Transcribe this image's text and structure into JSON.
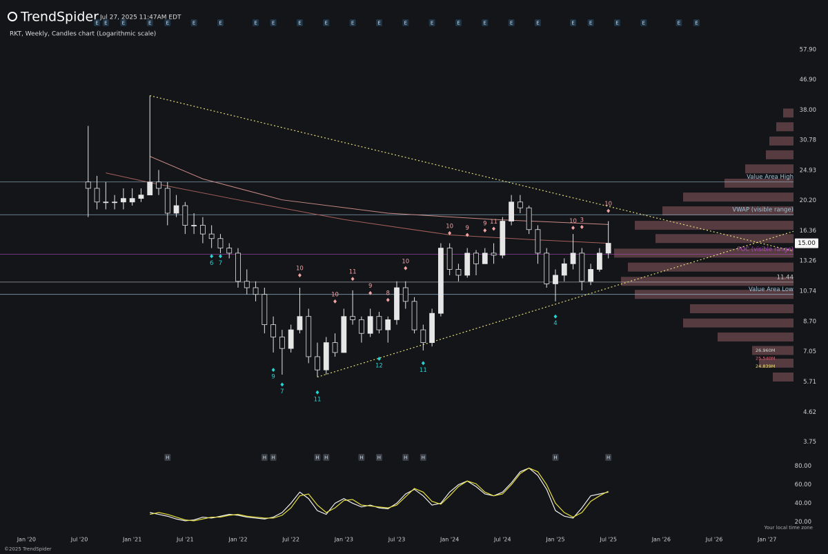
{
  "header": {
    "brand": "TrendSpider",
    "timestamp": "Jul 27, 2025 11:47AM EDT",
    "copyright": "©2025 TrendSpider",
    "timezone_note": "Your local time zone"
  },
  "chart_data": [
    {
      "type": "candlestick",
      "title": "RKT, Weekly, Candles chart (Logarithmic scale)",
      "log_scale": true,
      "color": "#e6e6e6",
      "x": [
        "2020-08",
        "2020-09",
        "2020-10",
        "2020-11",
        "2020-12",
        "2021-01",
        "2021-02",
        "2021-03",
        "2021-04",
        "2021-05",
        "2021-06",
        "2021-07",
        "2021-08",
        "2021-09",
        "2021-10",
        "2021-11",
        "2021-12",
        "2022-01",
        "2022-02",
        "2022-03",
        "2022-04",
        "2022-05",
        "2022-06",
        "2022-07",
        "2022-08",
        "2022-09",
        "2022-10",
        "2022-11",
        "2022-12",
        "2023-01",
        "2023-02",
        "2023-03",
        "2023-04",
        "2023-05",
        "2023-06",
        "2023-07",
        "2023-08",
        "2023-09",
        "2023-10",
        "2023-11",
        "2023-12",
        "2024-01",
        "2024-02",
        "2024-03",
        "2024-04",
        "2024-05",
        "2024-06",
        "2024-07",
        "2024-08",
        "2024-09",
        "2024-10",
        "2024-11",
        "2024-12",
        "2025-01",
        "2025-02",
        "2025-03",
        "2025-04",
        "2025-05",
        "2025-06",
        "2025-07"
      ],
      "open": [
        23,
        22,
        20,
        20,
        20,
        20,
        20.5,
        21,
        23,
        22,
        18.5,
        19.5,
        17,
        17,
        16,
        15.5,
        14.5,
        14,
        11.5,
        11,
        10.5,
        8.5,
        7.8,
        7.2,
        8.2,
        9,
        6.8,
        6.2,
        7.5,
        7,
        9,
        8.8,
        8,
        9,
        8.2,
        8.8,
        11,
        10,
        8.2,
        7.5,
        9.2,
        14.5,
        12.5,
        12,
        14,
        13,
        14,
        13.8,
        17.5,
        20,
        19.2,
        16.5,
        14,
        11.3,
        12,
        13,
        14,
        11.5,
        12.5,
        14
      ],
      "high": [
        34,
        24,
        23,
        21,
        22,
        22,
        22,
        42,
        25,
        23,
        21,
        20,
        18.5,
        18,
        17,
        16,
        15,
        14.5,
        12.5,
        11.5,
        11,
        9,
        8.2,
        8.5,
        11,
        9.5,
        7.5,
        7.8,
        8,
        9.5,
        10.8,
        9,
        9.5,
        9.3,
        9,
        11.5,
        11.5,
        10.3,
        8.5,
        9.5,
        15,
        15,
        13,
        14.5,
        14.3,
        14.5,
        15,
        18,
        21,
        21,
        19.5,
        17,
        14.5,
        12.5,
        13.5,
        16,
        14.5,
        13,
        14.5,
        17.5
      ],
      "low": [
        18,
        19,
        19,
        19,
        19,
        19.5,
        20,
        21,
        21,
        17,
        18,
        16,
        16,
        15,
        14.5,
        14,
        13.5,
        11,
        10.5,
        10,
        8,
        7,
        6,
        7,
        8,
        6.5,
        5.9,
        6,
        6.8,
        7,
        8.5,
        7.5,
        7.8,
        8,
        7.5,
        8.5,
        9.5,
        8,
        7.1,
        7.3,
        9,
        12,
        11.5,
        11.8,
        12,
        13,
        13,
        13.5,
        17,
        18.5,
        16,
        13,
        11,
        10,
        11.5,
        12.5,
        10.8,
        11.2,
        12.3,
        13.5
      ],
      "close": [
        22,
        20,
        20,
        20,
        20.5,
        20.5,
        21,
        23,
        22,
        18.5,
        19.5,
        17,
        17,
        16,
        15.5,
        14.5,
        14,
        11.5,
        11,
        10.5,
        8.5,
        7.8,
        7.2,
        8.2,
        9,
        6.8,
        6.2,
        7.5,
        7,
        9,
        8.8,
        8,
        9,
        8.2,
        8.8,
        11,
        10,
        8.2,
        7.5,
        9.2,
        14.5,
        12.5,
        12,
        14,
        13,
        14,
        13.8,
        17.5,
        20,
        19.2,
        16.5,
        14,
        11.3,
        12,
        13,
        14,
        11.5,
        12.5,
        14,
        15
      ],
      "xlim": [
        "2019-10",
        "2027-04"
      ],
      "xticks": [
        {
          "value": "2020-01",
          "label": "Jan '20"
        },
        {
          "value": "2020-07",
          "label": "Jul '20"
        },
        {
          "value": "2021-01",
          "label": "Jan '21"
        },
        {
          "value": "2021-07",
          "label": "Jul '21"
        },
        {
          "value": "2022-01",
          "label": "Jan '22"
        },
        {
          "value": "2022-07",
          "label": "Jul '22"
        },
        {
          "value": "2023-01",
          "label": "Jan '23"
        },
        {
          "value": "2023-07",
          "label": "Jul '23"
        },
        {
          "value": "2024-01",
          "label": "Jan '24"
        },
        {
          "value": "2024-07",
          "label": "Jul '24"
        },
        {
          "value": "2025-01",
          "label": "Jan '25"
        },
        {
          "value": "2025-07",
          "label": "Jul '25"
        },
        {
          "value": "2026-01",
          "label": "Jan '26"
        },
        {
          "value": "2026-07",
          "label": "Jul '26"
        },
        {
          "value": "2027-01",
          "label": "Jan '27"
        }
      ],
      "ylim": [
        3.5,
        67.5
      ],
      "yticks": [
        {
          "value": 57.9,
          "label": "57.90"
        },
        {
          "value": 46.9,
          "label": "46.90"
        },
        {
          "value": 38,
          "label": "38.00"
        },
        30.78,
        24.93,
        {
          "value": 20.2,
          "label": "20.20"
        },
        16.36,
        13.26,
        10.74,
        {
          "value": 8.7,
          "label": "8.70"
        },
        7.05,
        5.71,
        4.62,
        3.75
      ],
      "last_price": {
        "value": 15,
        "label": "15.00"
      },
      "levels": [
        {
          "value": 23,
          "label": "Value Area High",
          "color": "#9fc3d6"
        },
        {
          "value": 18.3,
          "label": "VWAP (visible range)",
          "color": "#9fc3d6"
        },
        {
          "value": 13.9,
          "label": "POC (visible range)",
          "color": "#b04cc0"
        },
        {
          "value": 11.44,
          "color": "#c8c8c8"
        },
        {
          "value": 10.5,
          "label": "Value Area Low",
          "color": "#9fc3d6"
        }
      ],
      "trendlines": [
        {
          "x": [
            "2021-03",
            "2027-04"
          ],
          "y": [
            42,
            14.2
          ],
          "color": "#e8e07a"
        },
        {
          "x": [
            "2022-10",
            "2027-04"
          ],
          "y": [
            5.9,
            16.3
          ],
          "color": "#e8e07a"
        }
      ],
      "moving_averages": [
        {
          "color": "#c98a86",
          "x": [
            "2021-03",
            "2021-09",
            "2022-06",
            "2023-06",
            "2024-06",
            "2025-07"
          ],
          "values": [
            27.5,
            23.5,
            20.3,
            18.5,
            17.7,
            17.1
          ]
        },
        {
          "color": "#a8605c",
          "x": [
            "2020-10",
            "2021-03",
            "2022-01",
            "2023-01",
            "2024-01",
            "2024-10",
            "2025-07"
          ],
          "values": [
            24.5,
            22.9,
            20.3,
            17.7,
            15.9,
            15.4,
            15
          ]
        }
      ],
      "td_buy": {
        "color": "#27d3d3",
        "points": [
          {
            "x": "2021-10",
            "y": 13.7,
            "text": "6"
          },
          {
            "x": "2021-11",
            "y": 13.7,
            "text": "7"
          },
          {
            "x": "2022-05",
            "y": 6.2,
            "text": "9"
          },
          {
            "x": "2022-06",
            "y": 5.6,
            "text": "7"
          },
          {
            "x": "2022-10",
            "y": 5.3,
            "text": "11"
          },
          {
            "x": "2023-05",
            "y": 6.7,
            "text": "12"
          },
          {
            "x": "2023-10",
            "y": 6.5,
            "text": "11"
          },
          {
            "x": "2025-01",
            "y": 9,
            "text": "4"
          }
        ]
      },
      "td_sell": {
        "color": "#f2a3a3",
        "points": [
          {
            "x": "2022-08",
            "y": 12,
            "text": "10"
          },
          {
            "x": "2022-12",
            "y": 10,
            "text": "10"
          },
          {
            "x": "2023-02",
            "y": 11.7,
            "text": "11"
          },
          {
            "x": "2023-04",
            "y": 10.6,
            "text": "9"
          },
          {
            "x": "2023-06",
            "y": 10.1,
            "text": "8"
          },
          {
            "x": "2023-08",
            "y": 12.6,
            "text": "10"
          },
          {
            "x": "2024-01",
            "y": 16.1,
            "text": "10"
          },
          {
            "x": "2024-03",
            "y": 15.9,
            "text": "9"
          },
          {
            "x": "2024-05",
            "y": 16.4,
            "text": "9"
          },
          {
            "x": "2024-06",
            "y": 16.6,
            "text": "11"
          },
          {
            "x": "2025-03",
            "y": 16.7,
            "text": "10"
          },
          {
            "x": "2025-04",
            "y": 16.8,
            "text": "3"
          },
          {
            "x": "2025-07",
            "y": 18.8,
            "text": "10"
          }
        ]
      },
      "earnings": {
        "label": "E",
        "x": [
          "2020-09",
          "2020-10",
          "2020-12",
          "2021-03",
          "2021-05",
          "2021-08",
          "2021-11",
          "2022-03",
          "2022-05",
          "2022-08",
          "2022-11",
          "2023-02",
          "2023-05",
          "2023-08",
          "2023-11",
          "2024-02",
          "2024-05",
          "2024-08",
          "2024-11",
          "2025-03",
          "2025-05",
          "2025-08",
          "2025-11",
          "2026-03",
          "2026-05"
        ]
      },
      "h_markers": {
        "label": "H",
        "x": [
          "2021-05",
          "2022-04",
          "2022-05",
          "2022-10",
          "2022-11",
          "2023-03",
          "2023-05",
          "2023-08",
          "2023-10",
          "2025-01",
          "2025-07"
        ]
      },
      "volume_profile": {
        "color": "#a86a72",
        "prices": [
          5.9,
          6.5,
          7.1,
          7.8,
          8.6,
          9.5,
          10.5,
          11.5,
          12.7,
          14,
          15.5,
          17,
          18.8,
          20.7,
          22.8,
          25.2,
          27.8,
          30.6,
          33.8,
          37.2
        ],
        "volumes": [
          13.5,
          22.5,
          27,
          49.5,
          72,
          67.5,
          103.5,
          112.5,
          108,
          117,
          90,
          103.5,
          85.5,
          72,
          45,
          31.5,
          18,
          15.75,
          11.25,
          6.75
        ],
        "labels": [
          {
            "text": "26.960M",
            "color": "#d8d8d8"
          },
          {
            "text": "25.540M",
            "color": "#e06878"
          },
          {
            "text": "24.839M",
            "color": "#e8e07a"
          }
        ]
      }
    },
    {
      "type": "line",
      "x": [
        "2021-03",
        "2021-04",
        "2021-05",
        "2021-06",
        "2021-07",
        "2021-08",
        "2021-09",
        "2021-10",
        "2021-11",
        "2021-12",
        "2022-01",
        "2022-02",
        "2022-03",
        "2022-04",
        "2022-05",
        "2022-06",
        "2022-07",
        "2022-08",
        "2022-09",
        "2022-10",
        "2022-11",
        "2022-12",
        "2023-01",
        "2023-02",
        "2023-03",
        "2023-04",
        "2023-05",
        "2023-06",
        "2023-07",
        "2023-08",
        "2023-09",
        "2023-10",
        "2023-11",
        "2023-12",
        "2024-01",
        "2024-02",
        "2024-03",
        "2024-04",
        "2024-05",
        "2024-06",
        "2024-07",
        "2024-08",
        "2024-09",
        "2024-10",
        "2024-11",
        "2024-12",
        "2025-01",
        "2025-02",
        "2025-03",
        "2025-04",
        "2025-05",
        "2025-06",
        "2025-07"
      ],
      "series": [
        {
          "color": "#f0f0f0",
          "values": [
            30,
            28,
            26,
            23,
            21,
            22,
            25,
            24,
            26,
            28,
            27,
            25,
            24,
            23,
            25,
            30,
            40,
            52,
            45,
            32,
            28,
            40,
            45,
            40,
            36,
            38,
            35,
            34,
            40,
            50,
            55,
            48,
            38,
            40,
            52,
            60,
            64,
            58,
            50,
            48,
            52,
            62,
            74,
            78,
            70,
            55,
            32,
            26,
            24,
            35,
            48,
            50,
            52
          ]
        },
        {
          "color": "#e8e040",
          "values": [
            28,
            30,
            28,
            25,
            22,
            21,
            23,
            25,
            25,
            27,
            28,
            26,
            25,
            24,
            24,
            27,
            35,
            48,
            50,
            38,
            30,
            35,
            43,
            44,
            38,
            37,
            36,
            35,
            38,
            47,
            56,
            52,
            42,
            39,
            48,
            58,
            64,
            61,
            52,
            48,
            50,
            60,
            72,
            78,
            74,
            60,
            40,
            30,
            25,
            30,
            42,
            48,
            53
          ]
        }
      ],
      "ylim": [
        15,
        85
      ],
      "yticks": [
        {
          "value": 80,
          "label": "80.00"
        },
        {
          "value": 60,
          "label": "60.00"
        },
        {
          "value": 40,
          "label": "40.00"
        },
        {
          "value": 20,
          "label": "20.00"
        }
      ]
    }
  ]
}
